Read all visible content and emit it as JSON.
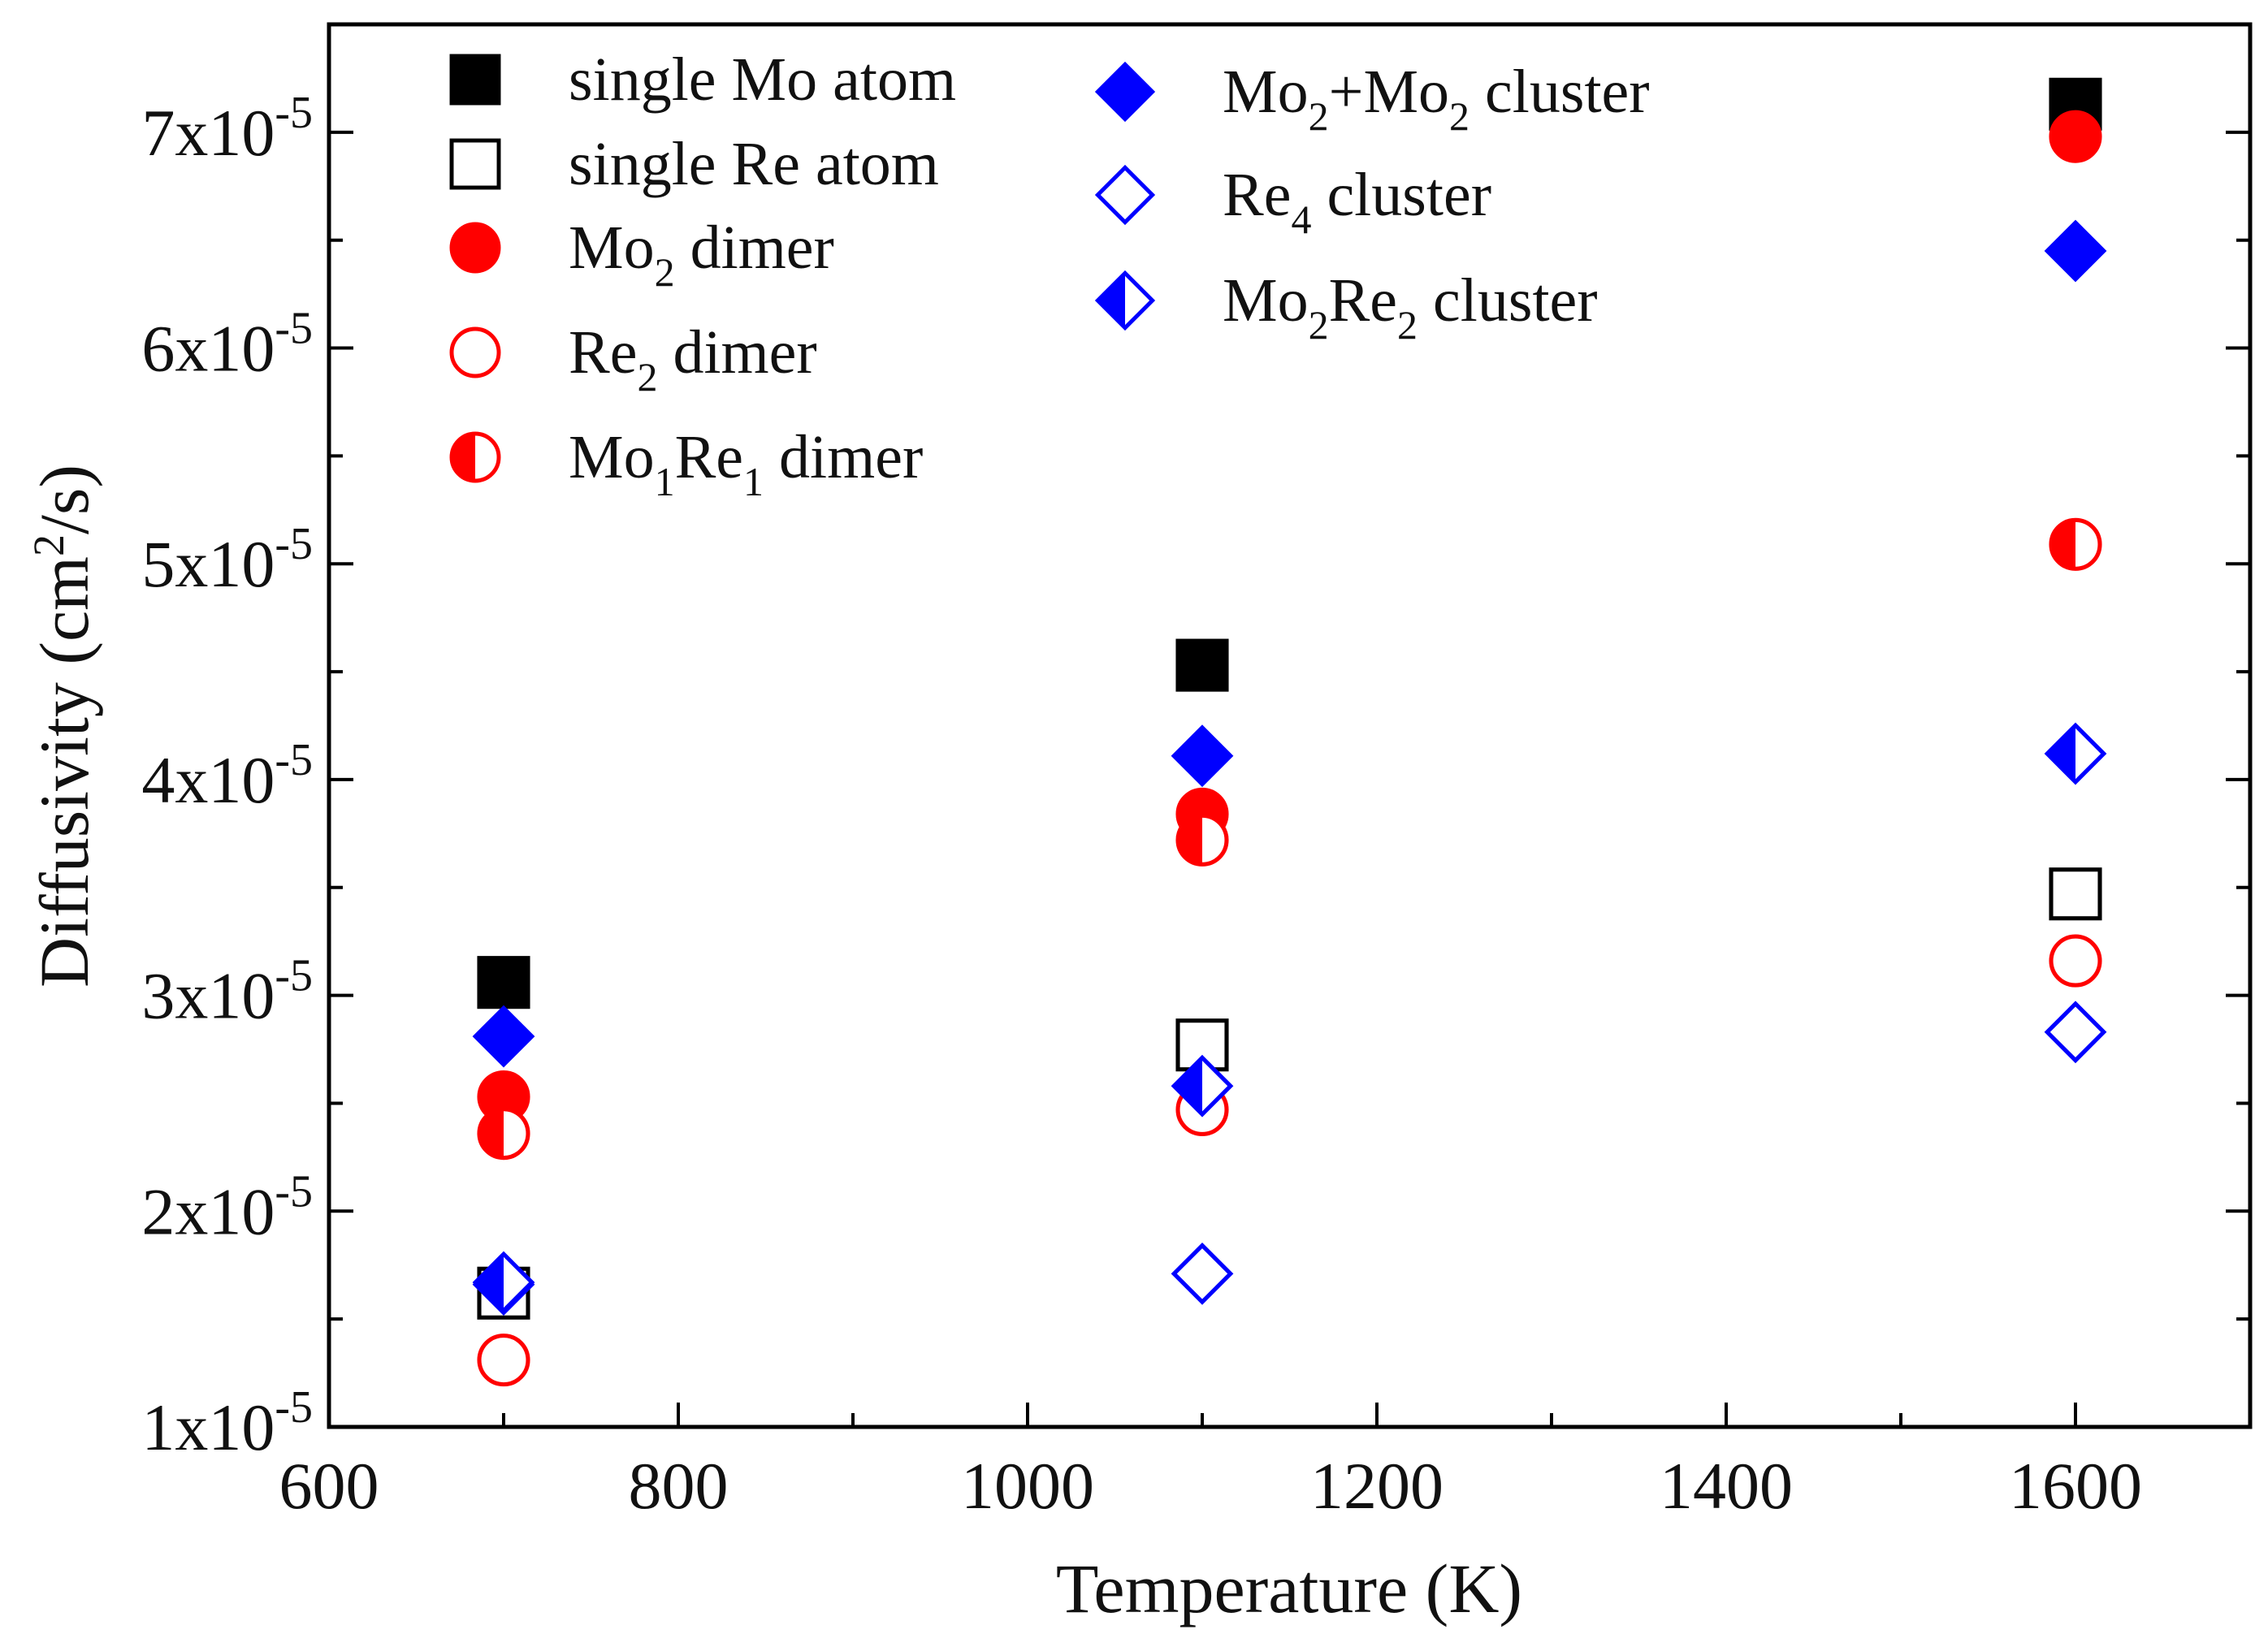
{
  "chart_data": {
    "type": "scatter",
    "title": "",
    "xlabel": "Temperature (K)",
    "ylabel_main": "Diffusivity (cm",
    "ylabel_sup": "2",
    "ylabel_tail": "/s)",
    "xlim": [
      600,
      1700
    ],
    "ylim": [
      1e-05,
      7.5e-05
    ],
    "x_ticks": [
      600,
      800,
      1000,
      1200,
      1400,
      1600
    ],
    "x_tick_labels": [
      "600",
      "800",
      "1000",
      "1200",
      "1400",
      "1600"
    ],
    "x_minor_ticks": [
      700,
      900,
      1100,
      1300,
      1500,
      1700
    ],
    "y_ticks": [
      1e-05,
      2e-05,
      3e-05,
      4e-05,
      5e-05,
      6e-05,
      7e-05
    ],
    "y_tick_labels": [
      {
        "mant": "1x10",
        "exp": "-5"
      },
      {
        "mant": "2x10",
        "exp": "-5"
      },
      {
        "mant": "3x10",
        "exp": "-5"
      },
      {
        "mant": "4x10",
        "exp": "-5"
      },
      {
        "mant": "5x10",
        "exp": "-5"
      },
      {
        "mant": "6x10",
        "exp": "-5"
      },
      {
        "mant": "7x10",
        "exp": "-5"
      }
    ],
    "y_minor_ticks": [
      1.5e-05,
      2.5e-05,
      3.5e-05,
      4.5e-05,
      5.5e-05,
      6.5e-05
    ],
    "series": [
      {
        "name": "single Mo atom",
        "marker": "square",
        "fill": "full",
        "color": "#000000",
        "x": [
          700,
          1100,
          1600
        ],
        "y": [
          3.06e-05,
          4.53e-05,
          7.13e-05
        ]
      },
      {
        "name": "single Re atom",
        "marker": "square",
        "fill": "none",
        "color": "#000000",
        "x": [
          700,
          1100,
          1600
        ],
        "y": [
          1.62e-05,
          2.77e-05,
          3.47e-05
        ]
      },
      {
        "name": "Mo2 dimer",
        "marker": "circle",
        "fill": "full",
        "color": "#ff0000",
        "x": [
          700,
          1100,
          1600
        ],
        "y": [
          2.53e-05,
          3.84e-05,
          6.98e-05
        ]
      },
      {
        "name": "Re2 dimer",
        "marker": "circle",
        "fill": "none",
        "color": "#ff0000",
        "x": [
          700,
          1100,
          1600
        ],
        "y": [
          1.31e-05,
          2.47e-05,
          3.16e-05
        ]
      },
      {
        "name": "Mo1Re1 dimer",
        "marker": "circle",
        "fill": "left",
        "color": "#ff0000",
        "x": [
          700,
          1100,
          1600
        ],
        "y": [
          2.36e-05,
          3.72e-05,
          5.09e-05
        ]
      },
      {
        "name": "Mo2+Mo2 cluster",
        "marker": "diamond",
        "fill": "full",
        "color": "#0000ff",
        "x": [
          700,
          1100,
          1600
        ],
        "y": [
          2.81e-05,
          4.11e-05,
          6.45e-05
        ]
      },
      {
        "name": "Re4 cluster",
        "marker": "diamond",
        "fill": "none",
        "color": "#0000ff",
        "x": [
          700,
          1100,
          1600
        ],
        "y": [
          1.66e-05,
          1.71e-05,
          2.83e-05
        ]
      },
      {
        "name": "Mo2Re2 cluster",
        "marker": "diamond",
        "fill": "left",
        "color": "#0000ff",
        "x": [
          700,
          1100,
          1600
        ],
        "y": [
          1.67e-05,
          2.58e-05,
          4.12e-05
        ]
      }
    ],
    "legend": [
      {
        "series": 0,
        "parts": [
          {
            "t": "single Mo atom"
          }
        ]
      },
      {
        "series": 1,
        "parts": [
          {
            "t": "single Re atom"
          }
        ]
      },
      {
        "series": 2,
        "parts": [
          {
            "t": "Mo"
          },
          {
            "t": "2",
            "sub": true
          },
          {
            "t": " dimer"
          }
        ]
      },
      {
        "series": 3,
        "parts": [
          {
            "t": "Re"
          },
          {
            "t": "2",
            "sub": true
          },
          {
            "t": " dimer"
          }
        ]
      },
      {
        "series": 4,
        "parts": [
          {
            "t": "Mo"
          },
          {
            "t": "1",
            "sub": true
          },
          {
            "t": "Re"
          },
          {
            "t": "1",
            "sub": true
          },
          {
            "t": " dimer"
          }
        ]
      },
      {
        "series": 5,
        "parts": [
          {
            "t": "Mo"
          },
          {
            "t": "2",
            "sub": true
          },
          {
            "t": "+Mo"
          },
          {
            "t": "2",
            "sub": true
          },
          {
            "t": " cluster"
          }
        ]
      },
      {
        "series": 6,
        "parts": [
          {
            "t": "Re"
          },
          {
            "t": "4",
            "sub": true
          },
          {
            "t": " cluster"
          }
        ]
      },
      {
        "series": 7,
        "parts": [
          {
            "t": "Mo"
          },
          {
            "t": "2",
            "sub": true
          },
          {
            "t": "Re"
          },
          {
            "t": "2",
            "sub": true
          },
          {
            "t": " cluster"
          }
        ]
      }
    ],
    "legend_placement": "top-left",
    "grid": false
  }
}
